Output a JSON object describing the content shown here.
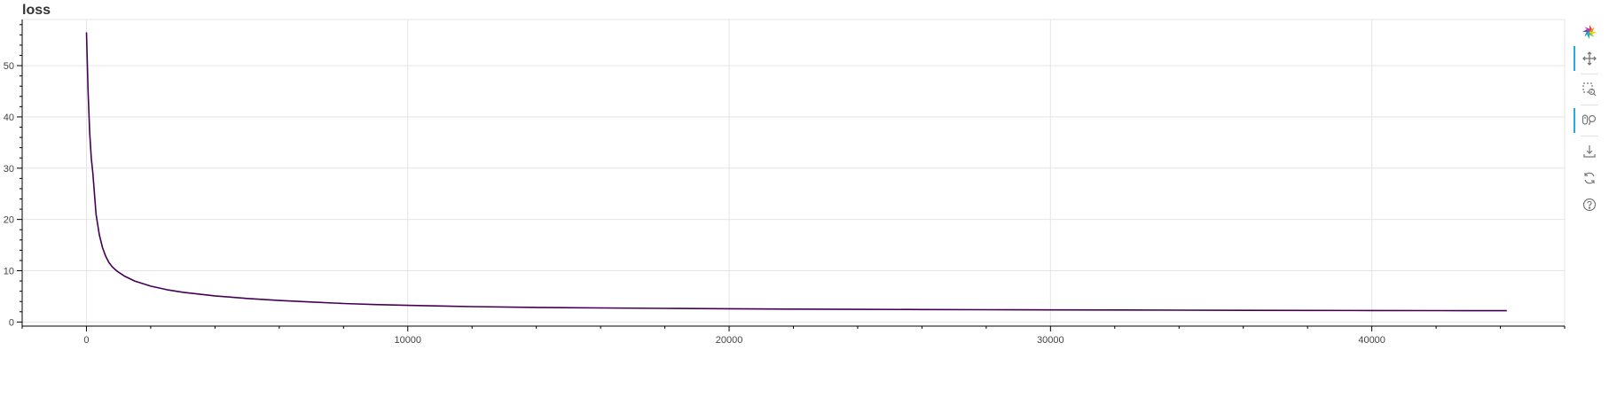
{
  "chart_data": {
    "type": "line",
    "title": "loss",
    "xlabel": "",
    "ylabel": "",
    "xlim": [
      -2000,
      46000
    ],
    "ylim": [
      -0.8,
      59
    ],
    "x_ticks": [
      0,
      10000,
      20000,
      30000,
      40000
    ],
    "x_tick_labels": [
      "0",
      "10000",
      "20000",
      "30000",
      "40000"
    ],
    "y_ticks": [
      0,
      10,
      20,
      30,
      40,
      50
    ],
    "y_tick_labels": [
      "0",
      "10",
      "20",
      "30",
      "40",
      "50"
    ],
    "grid": true,
    "legend": "none",
    "line_color": "#440154",
    "series": [
      {
        "x": [
          0,
          50,
          100,
          150,
          200,
          250,
          300,
          400,
          500,
          600,
          700,
          800,
          900,
          1000,
          1200,
          1500,
          2000,
          2500,
          3000,
          4000,
          5000,
          6000,
          7000,
          8000,
          9000,
          10000,
          12000,
          14000,
          16000,
          18000,
          20000,
          22000,
          24000,
          26000,
          28000,
          30000,
          32000,
          34000,
          36000,
          38000,
          40000,
          42000,
          44200
        ],
        "y": [
          56.5,
          45,
          37,
          32,
          29,
          25,
          21,
          17,
          14.5,
          12.8,
          11.6,
          10.8,
          10.2,
          9.7,
          8.9,
          8.0,
          7.0,
          6.3,
          5.8,
          5.1,
          4.6,
          4.2,
          3.9,
          3.6,
          3.4,
          3.25,
          3.0,
          2.85,
          2.75,
          2.65,
          2.58,
          2.52,
          2.47,
          2.43,
          2.4,
          2.37,
          2.34,
          2.31,
          2.28,
          2.26,
          2.24,
          2.22,
          2.2
        ]
      }
    ]
  },
  "toolbar": {
    "tools": [
      {
        "icon": "bokeh-logo-icon",
        "active": false
      },
      {
        "icon": "pan-icon",
        "active": true
      },
      {
        "icon": "box-zoom-icon",
        "active": false
      },
      {
        "icon": "wheel-zoom-icon",
        "active": true
      },
      {
        "icon": "save-icon",
        "active": false
      },
      {
        "icon": "reset-icon",
        "active": false
      },
      {
        "icon": "help-icon",
        "active": false
      }
    ]
  }
}
